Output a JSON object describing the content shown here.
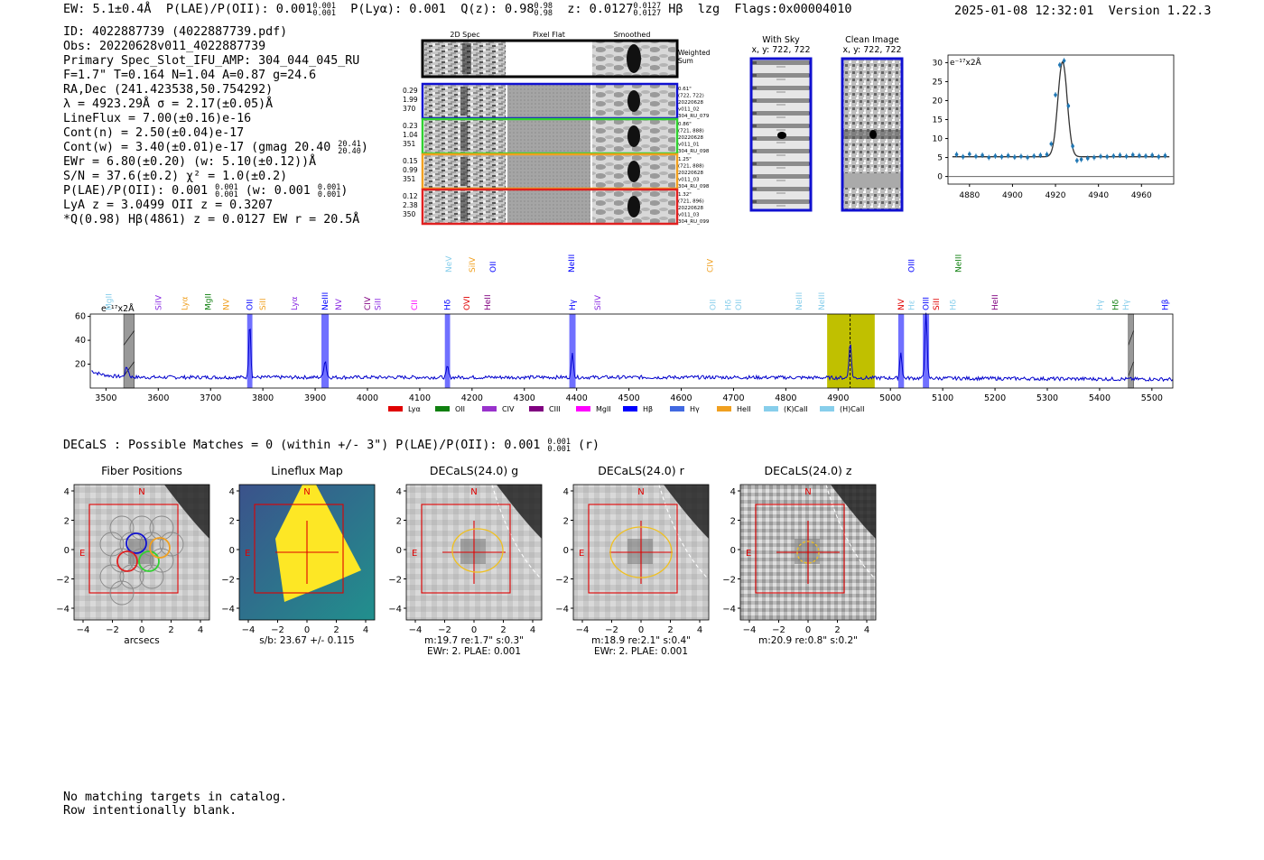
{
  "header": {
    "ew": "EW: 5.1±0.4Å",
    "plae_label": "P(LAE)/P(OII):",
    "plae_val": "0.001",
    "plae_hi": "0.001",
    "plae_lo": "0.001",
    "plya": "P(Lyα): 0.001",
    "q_label": "Q(z): 0.98",
    "q_hi": "0.98",
    "q_lo": "0.98",
    "z_label": "z: 0.0127",
    "z_hi": "0.0127",
    "z_lo": "0.0127",
    "line_name": "Hβ",
    "flag_text": "lzg",
    "flags": "Flags:0x00004010",
    "timestamp": "2025-01-08 12:32:01",
    "version": "Version 1.22.3"
  },
  "info": {
    "id": "ID: 4022887739 (4022887739.pdf)",
    "obs": "Obs: 20220628v011_4022887739",
    "primary": "Primary Spec_Slot_IFU_AMP: 304_044_045_RU",
    "params": "F=1.7\"  T=0.164  N=1.04  A=0.87  g=24.6",
    "radec": "RA,Dec (241.423538,50.754292)",
    "lambda": "λ = 4923.29Å  σ = 2.17(±0.05)Å",
    "lineflux": "LineFlux = 7.00(±0.16)e-16",
    "contn": "Cont(n) = 2.50(±0.04)e-17",
    "contw": "Cont(w) = 3.40(±0.01)e-17 (gmag 20.40",
    "contw_hi": "20.41",
    "contw_lo": "20.40",
    "contw_close": ")",
    "ewr": "EWr = 6.80(±0.20) (w: 5.10(±0.12))Å",
    "sn": "S/N = 37.6(±0.2)  χ² = 1.0(±0.2)",
    "plae": "P(LAE)/P(OII): 0.001",
    "plae_hi": "0.001",
    "plae_lo": "0.001",
    "plae_w": "(w: 0.001",
    "plae_w_hi": "0.001",
    "plae_w_lo": "0.001",
    "plae_close": ")",
    "lya_z": "LyA z = 3.0499  OII z = 0.3207",
    "q_line": "*Q(0.98) Hβ(4861) z = 0.0127  EW r = 20.5Å"
  },
  "cutouts": {
    "col_headers": [
      "2D Spec",
      "Pixel Flat",
      "Smoothed"
    ],
    "weighted_label": "Weighted\nSum",
    "rows": [
      {
        "left": [
          "0.29",
          "1.99",
          "370"
        ],
        "right": [
          "0.61\"",
          "(722, 722)",
          "20220628",
          "v011_02",
          "304_RU_079"
        ],
        "color": "#1010d0"
      },
      {
        "left": [
          "0.23",
          "1.04",
          "351"
        ],
        "right": [
          "0.86\"",
          "(721, 888)",
          "20220628",
          "v011_01",
          "304_RU_098"
        ],
        "color": "#30d030"
      },
      {
        "left": [
          "0.15",
          "0.99",
          "351"
        ],
        "right": [
          "1.25\"",
          "(721, 888)",
          "20220628",
          "v011_03",
          "304_RU_098"
        ],
        "color": "#f0a020"
      },
      {
        "left": [
          "0.12",
          "2.38",
          "350"
        ],
        "right": [
          "1.32\"",
          "(721, 896)",
          "20220628",
          "v011_03",
          "304_RU_099"
        ],
        "color": "#e02020"
      }
    ],
    "with_sky_title": "With Sky",
    "with_sky_xy": "x, y: 722, 722",
    "clean_title": "Clean Image",
    "clean_xy": "x, y: 722, 722"
  },
  "chart_data": [
    {
      "type": "line+scatter",
      "name": "line-fit-zoom",
      "unit_label": "e⁻¹⁷x2Å",
      "xlim": [
        4870,
        4975
      ],
      "ylim": [
        -2,
        32
      ],
      "xticks": [
        4880,
        4900,
        4920,
        4940,
        4960
      ],
      "yticks": [
        0,
        5,
        10,
        15,
        20,
        25,
        30
      ],
      "points_x": [
        4874,
        4877,
        4880,
        4883,
        4886,
        4889,
        4892,
        4895,
        4898,
        4901,
        4904,
        4907,
        4910,
        4913,
        4916,
        4918,
        4920,
        4922,
        4924,
        4926,
        4928,
        4930,
        4932,
        4935,
        4938,
        4941,
        4944,
        4947,
        4950,
        4953,
        4956,
        4959,
        4962,
        4965,
        4968,
        4971
      ],
      "points_y": [
        5.8,
        5.2,
        5.9,
        5.3,
        5.6,
        5.0,
        5.4,
        5.2,
        5.5,
        5.1,
        5.3,
        5.0,
        5.4,
        5.6,
        5.8,
        8.6,
        21.5,
        29.4,
        30.5,
        18.6,
        8.0,
        4.2,
        4.5,
        4.8,
        5.0,
        5.3,
        5.2,
        5.4,
        5.6,
        5.3,
        5.7,
        5.5,
        5.4,
        5.6,
        5.2,
        5.5
      ],
      "fit": {
        "center": 4923.29,
        "sigma": 2.17,
        "amplitude": 25.0,
        "continuum": 5.2
      }
    },
    {
      "type": "line",
      "name": "full-spectrum",
      "unit_label": "e⁻¹⁷x2Å",
      "xlim": [
        3470,
        5540
      ],
      "ylim": [
        0,
        62
      ],
      "xticks": [
        3500,
        3600,
        3700,
        3800,
        3900,
        4000,
        4100,
        4200,
        4300,
        4400,
        4500,
        4600,
        4700,
        4800,
        4900,
        5000,
        5100,
        5200,
        5300,
        5400,
        5500
      ],
      "yticks": [
        20,
        40,
        60
      ],
      "baseline": 9,
      "peaks": [
        {
          "x": 3540,
          "h": 8,
          "w": 3
        },
        {
          "x": 3775,
          "h": 48,
          "w": 1.8
        },
        {
          "x": 3919,
          "h": 14,
          "w": 2.5
        },
        {
          "x": 4153,
          "h": 9,
          "w": 2
        },
        {
          "x": 4392,
          "h": 20,
          "w": 2
        },
        {
          "x": 4923,
          "h": 30,
          "w": 2.2
        },
        {
          "x": 5020,
          "h": 22,
          "w": 2
        },
        {
          "x": 5068,
          "h": 56,
          "w": 2
        }
      ],
      "highlight_bands": [
        [
          3770,
          3780
        ],
        [
          3912,
          3926
        ],
        [
          4148,
          4158
        ],
        [
          4386,
          4398
        ],
        [
          5015,
          5026
        ],
        [
          5062,
          5074
        ]
      ],
      "gray_bands": [
        [
          3534,
          3554
        ],
        [
          5455,
          5465
        ]
      ],
      "yellow_band": [
        4879,
        4970
      ],
      "dashed_line_x": 4923,
      "line_labels_upper": [
        {
          "x": 3505,
          "label": "MgII",
          "color": "#87ceeb"
        },
        {
          "x": 3600,
          "label": "SiIV",
          "color": "#8a2be2"
        },
        {
          "x": 3650,
          "label": "Lyα",
          "color": "#f0a020"
        },
        {
          "x": 3695,
          "label": "MgII",
          "color": "#108010"
        },
        {
          "x": 3730,
          "label": "NV",
          "color": "#f0a020"
        },
        {
          "x": 3775,
          "label": "OII",
          "color": "#0000ff"
        },
        {
          "x": 3800,
          "label": "SiII",
          "color": "#f0a020"
        },
        {
          "x": 3860,
          "label": "Lyα",
          "color": "#8a2be2"
        },
        {
          "x": 3919,
          "label": "NeIII",
          "color": "#0000ff"
        },
        {
          "x": 3945,
          "label": "NV",
          "color": "#8a2be2"
        },
        {
          "x": 4000,
          "label": "CIV",
          "color": "#800080"
        },
        {
          "x": 4020,
          "label": "SiII",
          "color": "#8a2be2"
        },
        {
          "x": 4090,
          "label": "CII",
          "color": "#ff00ff"
        },
        {
          "x": 4153,
          "label": "Hδ",
          "color": "#0000ff"
        },
        {
          "x": 4190,
          "label": "OVI",
          "color": "#e00000"
        },
        {
          "x": 4230,
          "label": "HeII",
          "color": "#800080"
        },
        {
          "x": 4392,
          "label": "Hγ",
          "color": "#0000ff"
        },
        {
          "x": 4440,
          "label": "SiIV",
          "color": "#8a2be2"
        },
        {
          "x": 4660,
          "label": "OII",
          "color": "#87ceeb"
        },
        {
          "x": 4690,
          "label": "Hδ",
          "color": "#87ceeb"
        },
        {
          "x": 4710,
          "label": "OII",
          "color": "#87ceeb"
        },
        {
          "x": 4825,
          "label": "NeIII",
          "color": "#87ceeb"
        },
        {
          "x": 4868,
          "label": "NeIII",
          "color": "#87ceeb"
        },
        {
          "x": 5020,
          "label": "NV",
          "color": "#e00000"
        },
        {
          "x": 5040,
          "label": "Hε",
          "color": "#87ceeb"
        },
        {
          "x": 5068,
          "label": "OIII",
          "color": "#0000ff"
        },
        {
          "x": 5088,
          "label": "SiII",
          "color": "#e00000"
        },
        {
          "x": 5120,
          "label": "Hδ",
          "color": "#87ceeb"
        },
        {
          "x": 5200,
          "label": "HeII",
          "color": "#800080"
        },
        {
          "x": 5400,
          "label": "Hγ",
          "color": "#87ceeb"
        },
        {
          "x": 5430,
          "label": "Hδ",
          "color": "#108010"
        },
        {
          "x": 5450,
          "label": "Hγ",
          "color": "#87ceeb"
        },
        {
          "x": 5525,
          "label": "Hβ",
          "color": "#0000ff"
        }
      ],
      "line_labels_top": [
        {
          "x": 4155,
          "label": "NeV",
          "color": "#87ceeb"
        },
        {
          "x": 4200,
          "label": "SiIV",
          "color": "#f0a020"
        },
        {
          "x": 4240,
          "label": "OII",
          "color": "#0000ff"
        },
        {
          "x": 4390,
          "label": "NeIII",
          "color": "#0000ff"
        },
        {
          "x": 4655,
          "label": "CIV",
          "color": "#f0a020"
        },
        {
          "x": 5040,
          "label": "OIII",
          "color": "#0000ff"
        },
        {
          "x": 5130,
          "label": "NeIII",
          "color": "#108010"
        }
      ],
      "legend": [
        {
          "label": "Lyα",
          "color": "#e00000"
        },
        {
          "label": "OII",
          "color": "#108010"
        },
        {
          "label": "CIV",
          "color": "#9932cc"
        },
        {
          "label": "CIII",
          "color": "#800080"
        },
        {
          "label": "MgII",
          "color": "#ff00ff"
        },
        {
          "label": "Hβ",
          "color": "#0000ff"
        },
        {
          "label": "Hγ",
          "color": "#4169e1"
        },
        {
          "label": "HeII",
          "color": "#f0a020"
        },
        {
          "label": "(K)CaII",
          "color": "#87ceeb"
        },
        {
          "label": "(H)CaII",
          "color": "#87ceeb"
        }
      ]
    }
  ],
  "decals": {
    "summary": "DECaLS : Possible Matches = 0 (within +/- 3\")  P(LAE)/P(OII): 0.001",
    "summary_hi": "0.001",
    "summary_lo": "0.001",
    "summary_band": "(r)",
    "panels": [
      {
        "title": "Fiber Positions",
        "caption1": "arcsecs",
        "caption2": ""
      },
      {
        "title": "Lineflux Map",
        "caption1": "s/b: 23.67 +/- 0.115",
        "caption2": ""
      },
      {
        "title": "DECaLS(24.0) g",
        "caption1": "m:19.7  re:1.7\"  s:0.3\"",
        "caption2": "EWr: 2, PLAE: 0.001"
      },
      {
        "title": "DECaLS(24.0) r",
        "caption1": "m:18.9  re:2.1\"  s:0.4\"",
        "caption2": "EWr: 2, PLAE: 0.001"
      },
      {
        "title": "DECaLS(24.0) z",
        "caption1": "m:20.9  re:0.8\"  s:0.2\"",
        "caption2": ""
      }
    ],
    "ticks": [
      "4",
      "2",
      "0",
      "−2",
      "−4"
    ],
    "xticks": [
      "−4",
      "−2",
      "0",
      "2",
      "4"
    ],
    "north": "N",
    "east": "E"
  },
  "footer": {
    "line1": "No matching targets in catalog.",
    "line2": "Row intentionally blank."
  }
}
